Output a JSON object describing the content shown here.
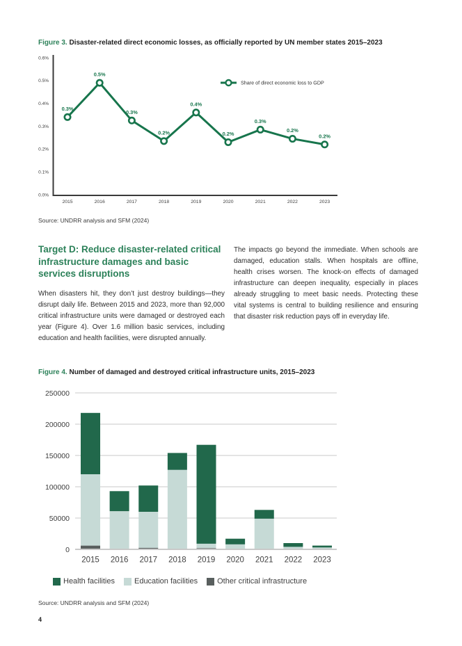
{
  "page": {
    "number": "4",
    "background": "#ffffff"
  },
  "colors": {
    "accent_green": "#2c8159",
    "line_green": "#17754c",
    "bar_health": "#21684b",
    "bar_education": "#c6dad6",
    "bar_other": "#595f5e",
    "gridline": "#dcdcdc"
  },
  "figure3": {
    "label": "Figure 3.",
    "title": " Disaster-related direct economic losses, as officially reported by UN member states 2015–2023",
    "source": "Source: UNDRR analysis and SFM (2024)"
  },
  "section": {
    "heading": "Target D: Reduce disaster-related critical infrastructure damages and basic services disruptions",
    "col_left": "When disasters hit, they don’t just destroy buildings—they disrupt daily life. Between 2015 and 2023, more than 92,000 critical infrastructure units were damaged or destroyed each year (Figure 4). Over 1.6 million basic services, including education and health facilities, were disrupted annually.",
    "col_right": "The impacts go beyond the immediate. When schools are damaged, education stalls. When hospitals are offline, health crises worsen. The knock-on effects of damaged infrastructure can deepen inequality, especially in places already struggling to meet basic needs. Protecting these vital systems is central to building resilience and ensuring that disaster risk reduction pays off in everyday life."
  },
  "figure4": {
    "label": "Figure 4.",
    "title": " Number of damaged and destroyed critical infrastructure units, 2015–2023",
    "source": "Source: UNDRR analysis and SFM (2024)"
  },
  "chart_data": [
    {
      "type": "line",
      "title": "Disaster-related direct economic losses, as officially reported by UN member states 2015–2023",
      "x": [
        2015,
        2016,
        2017,
        2018,
        2019,
        2020,
        2021,
        2022,
        2023
      ],
      "series": [
        {
          "name": "Share of direct economic loss to GDP",
          "values": [
            0.34,
            0.49,
            0.325,
            0.235,
            0.36,
            0.23,
            0.285,
            0.245,
            0.22
          ],
          "labels": [
            "0.3%",
            "0.5%",
            "0.3%",
            "0.2%",
            "0.4%",
            "0.2%",
            "0.3%",
            "0.2%",
            "0.2%"
          ]
        }
      ],
      "ylim": [
        0,
        0.6
      ],
      "yticks": [
        "0.0%",
        "0.1%",
        "0.2%",
        "0.3%",
        "0.4%",
        "0.5%",
        "0.6%"
      ],
      "grid": false,
      "legend_position": "inside-top-right",
      "color": "#17754c"
    },
    {
      "type": "bar",
      "stacked": true,
      "title": "Number of damaged and destroyed critical infrastructure units, 2015–2023",
      "categories": [
        "2015",
        "2016",
        "2017",
        "2018",
        "2019",
        "2020",
        "2021",
        "2022",
        "2023"
      ],
      "series": [
        {
          "name": "Other critical infrastructure",
          "color": "#595f5e",
          "values": [
            6000,
            0,
            2500,
            0,
            2000,
            0,
            0,
            0,
            0
          ]
        },
        {
          "name": "Education facilities",
          "color": "#c6dad6",
          "values": [
            114000,
            61000,
            57500,
            127000,
            7000,
            8000,
            49000,
            4000,
            3000
          ]
        },
        {
          "name": "Health facilities",
          "color": "#21684b",
          "values": [
            98000,
            32000,
            42000,
            27000,
            158000,
            9000,
            14000,
            6000,
            3000
          ]
        }
      ],
      "totals": [
        218000,
        93000,
        102000,
        154000,
        167000,
        17000,
        63000,
        10000,
        6000
      ],
      "ylim": [
        0,
        250000
      ],
      "yticks": [
        0,
        50000,
        100000,
        150000,
        200000,
        250000
      ],
      "grid": true,
      "legend_position": "bottom",
      "legend": [
        {
          "label": "Health facilities",
          "color": "#21684b"
        },
        {
          "label": "Education facilities",
          "color": "#c6dad6"
        },
        {
          "label": "Other critical infrastructure",
          "color": "#595f5e"
        }
      ]
    }
  ]
}
